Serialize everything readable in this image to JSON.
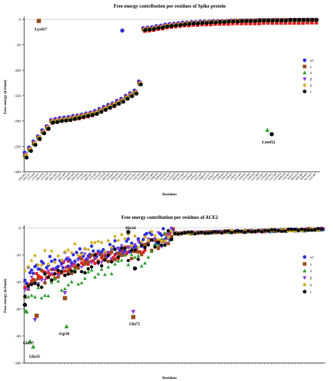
{
  "chart_data": [
    {
      "type": "scatter",
      "title": "Free energy contribution per residues of Spike protein",
      "xlabel": "Residues",
      "ylabel": "Free energy (kJ/mol)",
      "ylim": [
        -300,
        0
      ],
      "yticks": [
        0,
        -50,
        -100,
        -150,
        -200,
        -250,
        -300
      ],
      "zero_reference_line": true,
      "legend_position": "right",
      "categories": [
        "ARG403",
        "ARG357",
        "LYS444",
        "LYS417",
        "ARG346",
        "LYS378",
        "ARG355",
        "ARG466",
        "LYS424",
        "ARG408",
        "LYS458",
        "ARG509",
        "ARG454",
        "LYS386",
        "LYS462",
        "ARG457",
        "LYS356",
        "LYS529",
        "LYS528",
        "ARG466",
        "TYR505",
        "PHE456",
        "GLN493",
        "GLY496",
        "ASN501",
        "GLY502",
        "VAL503",
        "GLN498",
        "PHE490",
        "GLU484",
        "THR500",
        "SER494",
        "VAL445",
        "ALA475",
        "GLN474",
        "PRO491",
        "GLY485",
        "TYR473",
        "ASN487",
        "TYR453",
        "LEU455",
        "THR470",
        "GLY476",
        "SER477",
        "ASN481",
        "ASP420",
        "ASP428",
        "ASP405",
        "ASP427",
        "GLU465",
        "ASP442",
        "GLU406",
        "ASP364",
        "GLU484",
        "LEU492",
        "TYR449",
        "LEU452",
        "GLU340",
        "GLN414",
        "SER438",
        "VAL483",
        "ILE472",
        "PRO479",
        "PHE486",
        "SER469",
        "ALA435",
        "GLY482"
      ],
      "series": [
        {
          "name": "wt",
          "values": [
            -262,
            -252,
            -240,
            -230,
            -218,
            -210,
            -198,
            -196,
            -194,
            -193,
            -192,
            -190,
            -189,
            -187,
            -185,
            -183,
            -180,
            -176,
            -172,
            -168,
            -165,
            -160,
            -156,
            -150,
            -145,
            -140,
            -122,
            -17,
            -16,
            -15,
            -13,
            -12,
            -10,
            -9,
            -8,
            -7,
            -6,
            -6,
            -5,
            -5,
            -4,
            -4,
            -4,
            -3,
            -3,
            -3,
            -3,
            -2,
            -2,
            -2,
            -2,
            -2,
            -2,
            -2,
            -1,
            -1,
            -1,
            -1,
            -1,
            -1,
            -1,
            -1,
            -1,
            -1,
            -0.5,
            -0.5,
            -0.5
          ]
        },
        {
          "name": "γ",
          "values": [
            -268,
            -256,
            -244,
            -232,
            -221,
            -212,
            -200,
            -199,
            -197,
            -196,
            -195,
            -193,
            -191,
            -189,
            -187,
            -185,
            -183,
            -179,
            -175,
            -171,
            -167,
            -163,
            -159,
            -153,
            -148,
            -143,
            -125,
            -20,
            -19,
            -18,
            -16,
            -15,
            -13,
            -12,
            -11,
            -10,
            -9,
            -8,
            -7,
            -7,
            -6,
            -6,
            -5,
            -5,
            -4,
            -4,
            -4,
            -3,
            -3,
            -3,
            -3,
            -2,
            -2,
            -2,
            -2,
            -2,
            -2,
            -1,
            -1,
            -1,
            -1,
            -1,
            -1,
            -1,
            -1,
            -1,
            -1
          ]
        },
        {
          "name": "δ",
          "values": [
            -270,
            -258,
            -246,
            -234,
            -223,
            -214,
            -202,
            -201,
            -199,
            -198,
            -197,
            -195,
            -193,
            -191,
            -189,
            -187,
            -185,
            -181,
            -177,
            -173,
            -169,
            -165,
            -161,
            -155,
            -150,
            -145,
            -127,
            -19,
            -18,
            -17,
            -15,
            -14,
            -12,
            -11,
            -10,
            -9,
            -8,
            -7,
            -6,
            -6,
            -5,
            -5,
            -4,
            -4,
            -3,
            -3,
            -3,
            -2,
            -2,
            -2,
            -2,
            -2,
            -2,
            -1,
            -1,
            -1,
            -1,
            -1,
            -1,
            -1,
            -1,
            -1,
            -1,
            -1,
            -1,
            -0.5,
            -0.5
          ]
        },
        {
          "name": "β",
          "values": [
            -265,
            -254,
            -242,
            -231,
            -220,
            -211,
            -199,
            -198,
            -196,
            -195,
            -194,
            -192,
            -190,
            -188,
            -186,
            -184,
            -182,
            -178,
            -174,
            -170,
            -166,
            -162,
            -158,
            -152,
            -147,
            -142,
            -124,
            -18,
            -17,
            -16,
            -14,
            -13,
            -11,
            -10,
            -9,
            -8,
            -7,
            -7,
            -6,
            -6,
            -5,
            -5,
            -4,
            -4,
            -3,
            -3,
            -3,
            -2,
            -2,
            -2,
            -2,
            -2,
            -2,
            -1,
            -1,
            -1,
            -1,
            -1,
            -1,
            -1,
            -1,
            -1,
            -1,
            -1,
            -1,
            -0.5,
            -0.5
          ]
        },
        {
          "name": "α",
          "values": [
            -267,
            -255,
            -243,
            -232,
            -221,
            -212,
            -200,
            -199,
            -197,
            -196,
            -195,
            -193,
            -191,
            -189,
            -187,
            -185,
            -183,
            -179,
            -175,
            -171,
            -167,
            -163,
            -159,
            -153,
            -148,
            -143,
            -125,
            -19,
            -18,
            -17,
            -15,
            -14,
            -12,
            -11,
            -10,
            -9,
            -8,
            -7,
            -7,
            -6,
            -6,
            -5,
            -5,
            -4,
            -4,
            -3,
            -3,
            -3,
            -2,
            -2,
            -2,
            -2,
            -2,
            -1,
            -1,
            -1,
            -1,
            -1,
            -1,
            -1,
            -1,
            -1,
            -1,
            -1,
            -0.5,
            -0.5,
            -0.5
          ]
        },
        {
          "name": "ε",
          "values": [
            -272,
            -259,
            -247,
            -235,
            -224,
            -215,
            -203,
            -202,
            -200,
            -199,
            -198,
            -196,
            -194,
            -192,
            -190,
            -188,
            -186,
            -182,
            -178,
            -174,
            -170,
            -166,
            -162,
            -156,
            -151,
            -146,
            -128,
            -21,
            -20,
            -19,
            -17,
            -16,
            -14,
            -13,
            -12,
            -11,
            -10,
            -9,
            -8,
            -8,
            -7,
            -7,
            -6,
            -6,
            -5,
            -5,
            -4,
            -4,
            -4,
            -3,
            -3,
            -3,
            -3,
            -2,
            -2,
            -2,
            -2,
            -2,
            -2,
            -2,
            -1,
            -1,
            -1,
            -1,
            -1,
            -1,
            -1
          ]
        }
      ],
      "annotations": [
        {
          "text": "Lys417",
          "x": 3,
          "y": -3
        },
        {
          "text": "Leu452",
          "x": 56,
          "y": -222
        }
      ],
      "extra_points": [
        {
          "series": "γ",
          "x": 3,
          "y": -3
        },
        {
          "series": "wt",
          "x": 22,
          "y": -22
        },
        {
          "series": "ε",
          "x": 56,
          "y": -226
        },
        {
          "series": "δ",
          "x": 55,
          "y": -218
        }
      ]
    },
    {
      "type": "scatter",
      "title": "Free energy contribution per residues of ACE2",
      "xlabel": "Residues",
      "ylabel": "Free energy (kJ/mol)",
      "ylim": [
        -100,
        0
      ],
      "yticks": [
        0,
        -20,
        -40,
        -60,
        -80,
        -100
      ],
      "zero_reference_line": true,
      "legend_position": "right",
      "n_residues": 180,
      "annotations": [
        {
          "text": "His34",
          "x": 62,
          "y": -3
        },
        {
          "text": "Glu75",
          "x": 65,
          "y": -66
        },
        {
          "text": "Asp30",
          "x": 25,
          "y": -73
        },
        {
          "text": "Glu37",
          "x": 3,
          "y": -80
        },
        {
          "text": "Glu35",
          "x": 5,
          "y": -90
        }
      ],
      "outliers": [
        {
          "series": "ε",
          "x": 62,
          "y": -3
        },
        {
          "series": "β",
          "x": 65,
          "y": -62
        },
        {
          "series": "γ",
          "x": 65,
          "y": -66
        },
        {
          "series": "ε",
          "x": 66,
          "y": -30
        },
        {
          "series": "δ",
          "x": 25,
          "y": -73
        },
        {
          "series": "γ",
          "x": 24,
          "y": -52
        },
        {
          "series": "β",
          "x": 24,
          "y": -48
        },
        {
          "series": "δ",
          "x": 3,
          "y": -84
        },
        {
          "series": "δ",
          "x": 5,
          "y": -88
        },
        {
          "series": "β",
          "x": 6,
          "y": -68
        },
        {
          "series": "γ",
          "x": 7,
          "y": -65
        },
        {
          "series": "ε",
          "x": 0,
          "y": -57
        },
        {
          "series": "δ",
          "x": 1,
          "y": -62
        }
      ],
      "series_profiles": [
        {
          "name": "wt",
          "start": -38,
          "mid": -10,
          "end": -1
        },
        {
          "name": "γ",
          "start": -46,
          "mid": -16,
          "end": -1
        },
        {
          "name": "δ",
          "start": -58,
          "mid": -22,
          "end": -1
        },
        {
          "name": "β",
          "start": -44,
          "mid": -14,
          "end": -1
        },
        {
          "name": "α",
          "start": -30,
          "mid": -8,
          "end": -1
        },
        {
          "name": "ε",
          "start": -48,
          "mid": -17,
          "end": -1
        }
      ]
    }
  ],
  "legend": [
    {
      "label": "wt",
      "color": "#2f2fd8",
      "marker": "circle"
    },
    {
      "label": "γ",
      "color": "#9b4a1a",
      "marker": "square"
    },
    {
      "label": "δ",
      "color": "#2e9e2e",
      "marker": "triangle-up"
    },
    {
      "label": "β",
      "color": "#8a3de0",
      "marker": "triangle-down"
    },
    {
      "label": "α",
      "color": "#d4b02a",
      "marker": "diamond"
    },
    {
      "label": "ε",
      "color": "#000000",
      "marker": "circle"
    }
  ],
  "extra_series_color_red": "#e02020"
}
